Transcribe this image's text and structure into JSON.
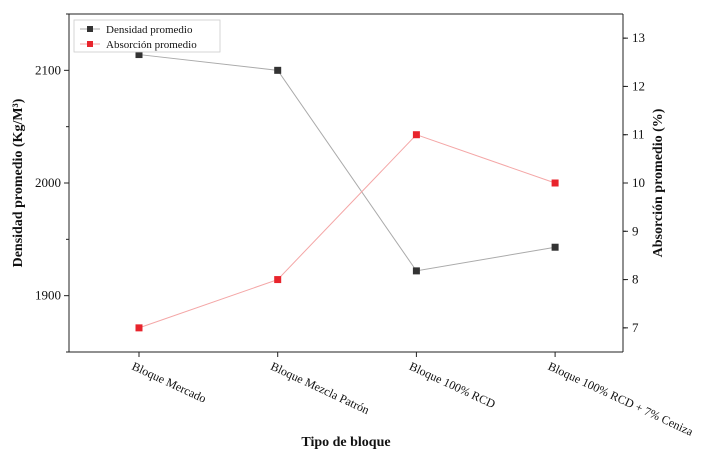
{
  "chart_data": {
    "type": "line",
    "categories": [
      "Bloque Mercado",
      "Bloque Mezcla Patrón",
      "Bloque 100% RCD",
      "Bloque 100% RCD + 7% Ceniza"
    ],
    "xlabel": "Tipo de bloque",
    "ylabel_left": "Densidad promedio (Kg/M³)",
    "ylabel_right": "Absorción promedio (%)",
    "ylim_left": [
      1850,
      2150
    ],
    "ylim_right": [
      6.5,
      13.5
    ],
    "yticks_left": [
      1900,
      2000,
      2100
    ],
    "yticks_right": [
      7,
      8,
      9,
      10,
      11,
      12,
      13
    ],
    "legend_position": "top-left",
    "series": [
      {
        "name": "Densidad promedio",
        "axis": "left",
        "color": "#333333",
        "line_color": "#aaaaaa",
        "values": [
          2114,
          2100,
          1922,
          1943
        ]
      },
      {
        "name": "Absorción promedio",
        "axis": "right",
        "color": "#e8242c",
        "line_color": "#f4a6a6",
        "values": [
          7.0,
          8.0,
          11.0,
          10.0
        ]
      }
    ]
  }
}
